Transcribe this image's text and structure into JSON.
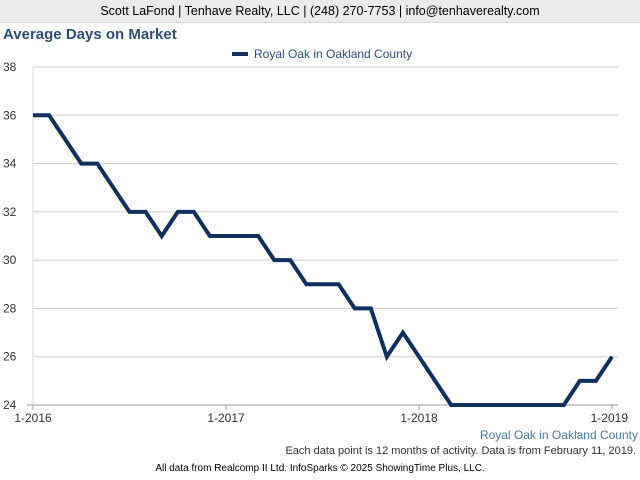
{
  "header": {
    "contact": "Scott LaFond | Tenhave Realty, LLC | (248) 270-7753 | info@tenhaverealty.com"
  },
  "chart_data": {
    "type": "line",
    "title": "Average Days on Market",
    "xlabel": "",
    "ylabel": "",
    "ylim": [
      24,
      38
    ],
    "y_ticks": [
      24,
      26,
      28,
      30,
      32,
      34,
      36,
      38
    ],
    "x_ticks": [
      {
        "label": "1-2016",
        "index": 0
      },
      {
        "label": "1-2017",
        "index": 12
      },
      {
        "label": "1-2018",
        "index": 24
      },
      {
        "label": "1-2019",
        "index": 36
      }
    ],
    "x": [
      "1-2016",
      "2-2016",
      "3-2016",
      "4-2016",
      "5-2016",
      "6-2016",
      "7-2016",
      "8-2016",
      "9-2016",
      "10-2016",
      "11-2016",
      "12-2016",
      "1-2017",
      "2-2017",
      "3-2017",
      "4-2017",
      "5-2017",
      "6-2017",
      "7-2017",
      "8-2017",
      "9-2017",
      "10-2017",
      "11-2017",
      "12-2017",
      "1-2018",
      "2-2018",
      "3-2018",
      "4-2018",
      "5-2018",
      "6-2018",
      "7-2018",
      "8-2018",
      "9-2018",
      "10-2018",
      "11-2018",
      "12-2018",
      "1-2019"
    ],
    "grid": true,
    "legend_position": "top-center",
    "series": [
      {
        "name": "Royal Oak in Oakland County",
        "color": "#0f2f5e",
        "values": [
          36,
          36,
          35,
          34,
          34,
          33,
          32,
          32,
          31,
          32,
          32,
          31,
          31,
          31,
          31,
          30,
          30,
          29,
          29,
          29,
          28,
          28,
          26,
          27,
          26,
          25,
          24,
          24,
          24,
          24,
          24,
          24,
          24,
          24,
          25,
          25,
          26
        ]
      }
    ]
  },
  "region_label": "Royal Oak in Oakland County",
  "note": "Each data point is 12 months of activity. Data is from February 11, 2019.",
  "footer": "All data from Realcomp II Ltd. InfoSparks © 2025 ShowingTime Plus, LLC."
}
